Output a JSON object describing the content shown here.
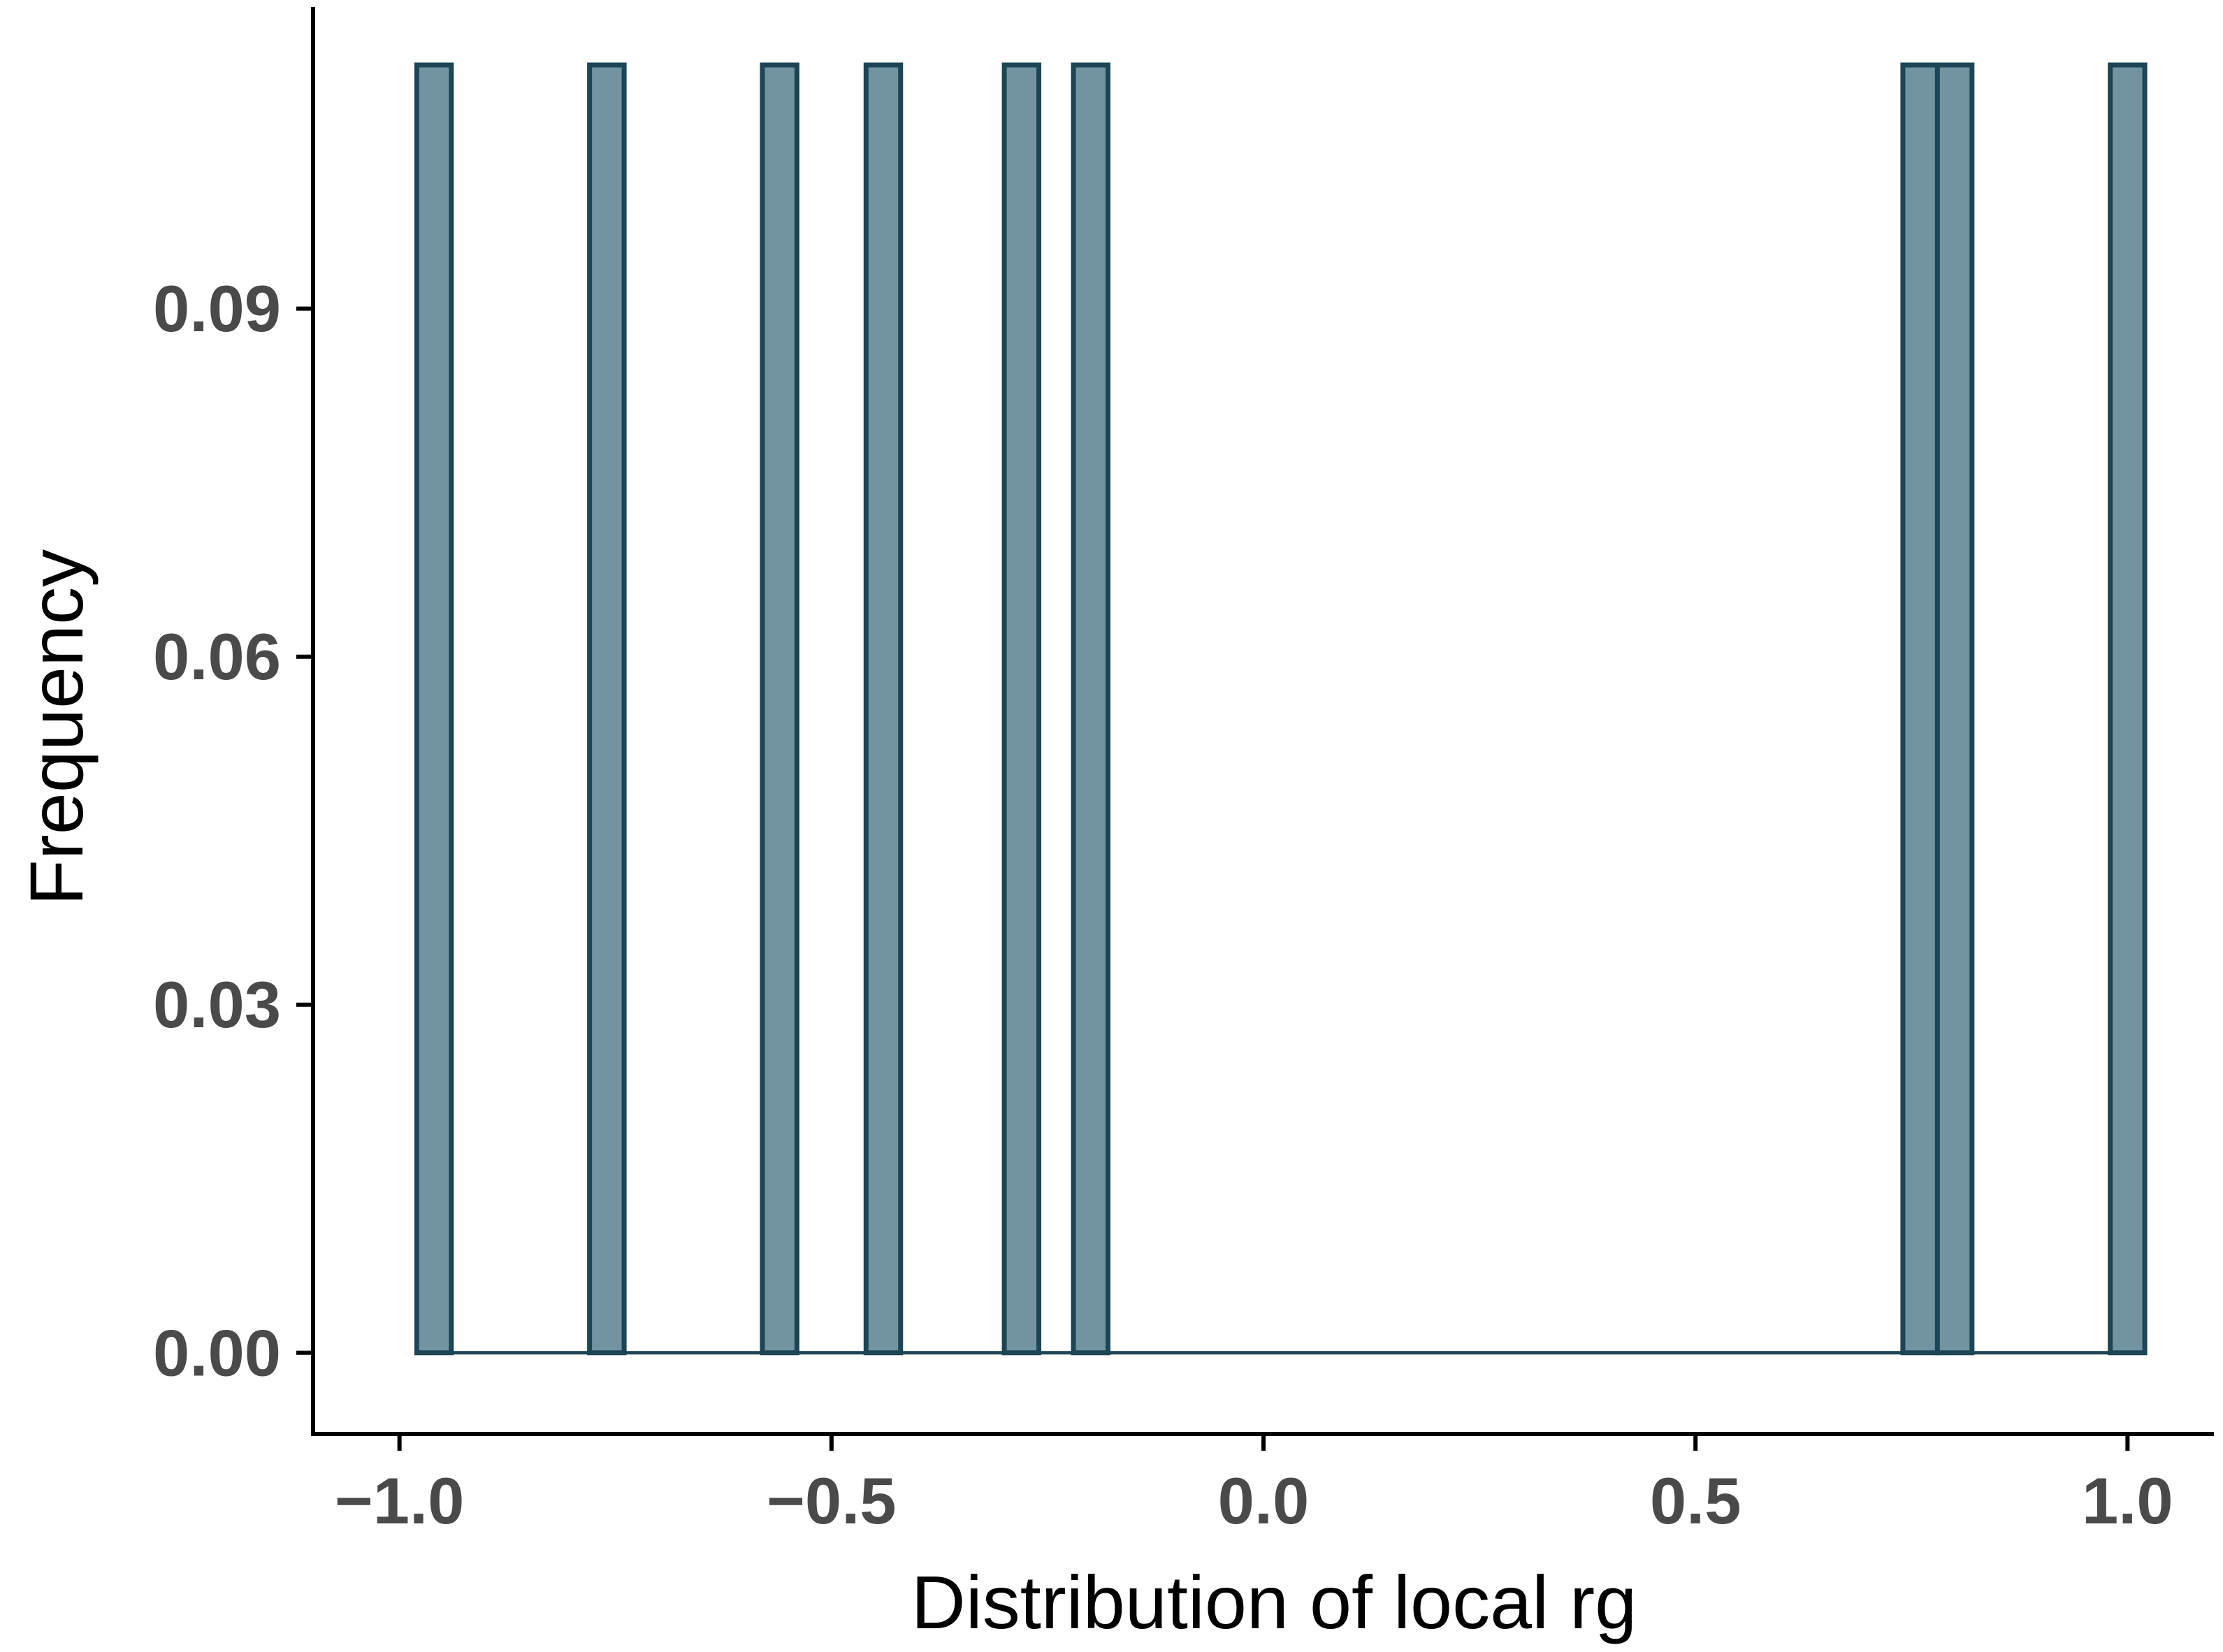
{
  "chart_data": {
    "type": "bar",
    "title": "",
    "xlabel": "Distribution of local rg",
    "ylabel": "Frequency",
    "xlim": [
      -1.1,
      1.1
    ],
    "ylim": [
      -0.007,
      0.116
    ],
    "x_ticks": [
      -1.0,
      -0.5,
      0.0,
      0.5,
      1.0
    ],
    "x_tick_labels": [
      "−1.0",
      "−0.5",
      "0.0",
      "0.5",
      "1.0"
    ],
    "y_ticks": [
      0.0,
      0.03,
      0.06,
      0.09
    ],
    "y_tick_labels": [
      "0.00",
      "0.03",
      "0.06",
      "0.09"
    ],
    "bin_range": [
      -0.98,
      1.02
    ],
    "bin_width": 0.04,
    "bars": [
      {
        "x": -0.96,
        "value": 0.111
      },
      {
        "x": -0.76,
        "value": 0.111
      },
      {
        "x": -0.56,
        "value": 0.111
      },
      {
        "x": -0.44,
        "value": 0.111
      },
      {
        "x": -0.28,
        "value": 0.111
      },
      {
        "x": -0.2,
        "value": 0.111
      },
      {
        "x": 0.76,
        "value": 0.111
      },
      {
        "x": 0.8,
        "value": 0.111
      },
      {
        "x": 1.0,
        "value": 0.111
      }
    ],
    "grid": false,
    "legend": "none",
    "colors": {
      "bar_fill": "#7294a0",
      "bar_stroke": "#1c4556",
      "axis": "#000000"
    }
  }
}
